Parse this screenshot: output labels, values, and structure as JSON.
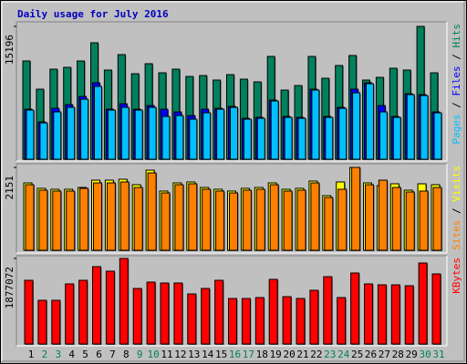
{
  "chart_data": [
    {
      "type": "bar",
      "title": "Daily usage for July 2016",
      "legend_separator": "/",
      "ylim": [
        0,
        15196
      ],
      "yticks": [
        15196
      ],
      "series": [
        {
          "name": "Hits",
          "color": "#00805c",
          "values": [
            11241,
            8014,
            10304,
            10512,
            11241,
            13322,
            10200,
            11969,
            9784,
            10928,
            9888,
            10304,
            9471,
            9575,
            9055,
            9679,
            9159,
            8847,
            11761,
            7910,
            8430,
            11761,
            9263,
            10720,
            11865,
            9055,
            9367,
            10408,
            10200,
            15196,
            9888
          ]
        },
        {
          "name": "Files",
          "color": "#0000ff",
          "values": [
            5724,
            4267,
            5828,
            6245,
            7182,
            8743,
            5724,
            6349,
            5724,
            6141,
            5724,
            5412,
            4996,
            5724,
            5828,
            6037,
            4684,
            4788,
            6765,
            4892,
            4788,
            8014,
            4892,
            5933,
            8014,
            8743,
            6141,
            4892,
            7494,
            7390,
            5412
          ]
        },
        {
          "name": "Pages",
          "color": "#00c0ff",
          "values": [
            5620,
            4163,
            5412,
            5933,
            6869,
            8326,
            5620,
            5933,
            5620,
            5933,
            4892,
            4996,
            4580,
            5308,
            5724,
            5933,
            4580,
            4684,
            6661,
            4788,
            4684,
            7910,
            4788,
            5828,
            7598,
            8639,
            5412,
            4788,
            7390,
            7286,
            5308
          ]
        }
      ]
    },
    {
      "type": "bar",
      "ylim": [
        0,
        2151
      ],
      "yticks": [
        2151
      ],
      "series": [
        {
          "name": "Visits",
          "color": "#ffff00",
          "values": [
            1749,
            1608,
            1584,
            1584,
            1631,
            1820,
            1820,
            1844,
            1702,
            2080,
            1537,
            1749,
            1773,
            1631,
            1584,
            1537,
            1608,
            1631,
            1749,
            1584,
            1608,
            1797,
            1418,
            1773,
            2151,
            1749,
            1678,
            1726,
            1560,
            1726,
            1702
          ]
        },
        {
          "name": "Sites",
          "color": "#ff8000",
          "values": [
            1702,
            1560,
            1537,
            1537,
            1608,
            1749,
            1749,
            1773,
            1631,
            2009,
            1489,
            1702,
            1726,
            1584,
            1537,
            1489,
            1560,
            1584,
            1702,
            1537,
            1560,
            1749,
            1371,
            1584,
            2151,
            1702,
            1820,
            1631,
            1513,
            1537,
            1631
          ]
        }
      ]
    },
    {
      "type": "bar",
      "ylim": [
        0,
        1877072
      ],
      "yticks": [
        1877072
      ],
      "categories": [
        "1",
        "2",
        "3",
        "4",
        "5",
        "6",
        "7",
        "8",
        "9",
        "10",
        "11",
        "12",
        "13",
        "14",
        "15",
        "16",
        "17",
        "18",
        "19",
        "20",
        "21",
        "22",
        "23",
        "24",
        "25",
        "26",
        "27",
        "28",
        "29",
        "30",
        "31"
      ],
      "category_colors": [
        "#000000",
        "#00805c",
        "#00805c",
        "#000000",
        "#000000",
        "#000000",
        "#000000",
        "#000000",
        "#00805c",
        "#00805c",
        "#000000",
        "#000000",
        "#000000",
        "#000000",
        "#000000",
        "#00805c",
        "#00805c",
        "#000000",
        "#000000",
        "#000000",
        "#000000",
        "#000000",
        "#00805c",
        "#00805c",
        "#000000",
        "#000000",
        "#000000",
        "#000000",
        "#000000",
        "#00805c",
        "#00805c"
      ],
      "series": [
        {
          "name": "KBytes",
          "color": "#ff0000",
          "values": [
            1397830,
            958512,
            958512,
            1317954,
            1397830,
            1697365,
            1597520,
            1877072,
            1218109,
            1357892,
            1337923,
            1337923,
            1098295,
            1218109,
            1397830,
            998450,
            998450,
            1018419,
            1417799,
            1038388,
            998450,
            1178171,
            1477706,
            1018419,
            1557582,
            1317954,
            1297985,
            1297985,
            1278016,
            1777241,
            1537613
          ]
        }
      ]
    }
  ]
}
